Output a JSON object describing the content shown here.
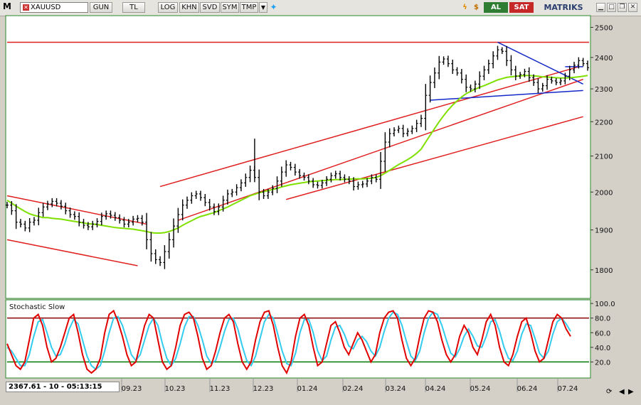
{
  "toolbar": {
    "logo": "M",
    "symbol": "XAUUSD",
    "buttons": [
      "GUN",
      "TL",
      "LOG",
      "KHN",
      "SVD",
      "SYM",
      "TMP"
    ],
    "buy_label": "AL",
    "sell_label": "SAT",
    "brand": "MATRIKS"
  },
  "status": {
    "readout": "2367.61 - 10 - 05:13:15"
  },
  "indicator": {
    "title": "Stochastic Slow"
  },
  "colors": {
    "price": "#000000",
    "ma": "#7fe000",
    "channel": "#e02020",
    "triangle": "#1428c8",
    "stoch_k": "#e00000",
    "stoch_d": "#33ccee",
    "overbought": "#8b0000",
    "oversold": "#007a00"
  },
  "chart_data": [
    {
      "type": "line",
      "title": "",
      "x_ticks": [
        "09.23",
        "10.23",
        "11.23",
        "12.23",
        "01.24",
        "02.24",
        "03.24",
        "04.24",
        "05.24",
        "06.24",
        "07.24"
      ],
      "y_ticks": [
        1800,
        1900,
        2000,
        2100,
        2200,
        2300,
        2400,
        2500
      ],
      "ylim": [
        1735,
        2535
      ],
      "scale": "log",
      "grid": false,
      "series": [
        {
          "values": [
            1965,
            1950,
            1920,
            1915,
            1905,
            1920,
            1925,
            1945,
            1960,
            1968,
            1975,
            1970,
            1962,
            1950,
            1940,
            1935,
            1920,
            1912,
            1908,
            1915,
            1922,
            1935,
            1942,
            1938,
            1932,
            1925,
            1915,
            1920,
            1928,
            1930,
            1920,
            1875,
            1840,
            1825,
            1818,
            1845,
            1875,
            1910,
            1940,
            1965,
            1978,
            1990,
            1995,
            1985,
            1972,
            1960,
            1948,
            1960,
            1978,
            1995,
            2000,
            2012,
            2025,
            2040,
            2060,
            2040,
            2000,
            1990,
            2000,
            2010,
            2030,
            2055,
            2075,
            2068,
            2055,
            2045,
            2040,
            2030,
            2020,
            2018,
            2025,
            2035,
            2045,
            2050,
            2040,
            2035,
            2030,
            2015,
            2020,
            2022,
            2030,
            2040,
            2035,
            2085,
            2140,
            2165,
            2175,
            2180,
            2165,
            2172,
            2180,
            2195,
            2210,
            2280,
            2320,
            2350,
            2385,
            2395,
            2380,
            2360,
            2350,
            2330,
            2305,
            2300,
            2315,
            2340,
            2360,
            2380,
            2405,
            2425,
            2420,
            2390,
            2360,
            2340,
            2345,
            2355,
            2335,
            2320,
            2300,
            2310,
            2330,
            2325,
            2320,
            2325,
            2340,
            2360,
            2375,
            2390,
            2380,
            2367
          ]
        },
        {
          "values": [
            1978,
            1970,
            1962,
            1955,
            1948,
            1942,
            1938,
            1935,
            1932,
            1932,
            1930,
            1929,
            1928,
            1926,
            1924,
            1922,
            1920,
            1918,
            1916,
            1915,
            1914,
            1912,
            1910,
            1908,
            1906,
            1905,
            1904,
            1903,
            1902,
            1900,
            1898,
            1896,
            1893,
            1892,
            1892,
            1893,
            1896,
            1900,
            1905,
            1912,
            1918,
            1924,
            1930,
            1935,
            1938,
            1942,
            1945,
            1950,
            1955,
            1960,
            1966,
            1972,
            1978,
            1984,
            1990,
            1994,
            1998,
            2001,
            2004,
            2007,
            2010,
            2014,
            2017,
            2020,
            2022,
            2024,
            2026,
            2028,
            2029,
            2030,
            2031,
            2032,
            2033,
            2034,
            2034,
            2035,
            2035,
            2036,
            2036,
            2036,
            2037,
            2038,
            2040,
            2045,
            2052,
            2060,
            2068,
            2076,
            2083,
            2090,
            2098,
            2108,
            2120,
            2140,
            2160,
            2180,
            2200,
            2218,
            2235,
            2250,
            2263,
            2275,
            2285,
            2292,
            2299,
            2305,
            2310,
            2316,
            2322,
            2328,
            2332,
            2336,
            2338,
            2340,
            2341,
            2342,
            2342,
            2341,
            2340,
            2338,
            2337,
            2336,
            2335,
            2334,
            2334,
            2335,
            2336,
            2338,
            2340,
            2342
          ]
        }
      ]
    },
    {
      "type": "line",
      "title": "Stochastic Slow",
      "y_ticks": [
        20,
        40,
        60,
        80,
        100
      ],
      "ylim": [
        0,
        103
      ],
      "levels": [
        20,
        80
      ],
      "series": [
        {
          "values": [
            45,
            30,
            15,
            10,
            20,
            50,
            80,
            85,
            70,
            40,
            20,
            25,
            40,
            60,
            80,
            85,
            60,
            30,
            10,
            5,
            10,
            25,
            60,
            85,
            90,
            75,
            55,
            30,
            15,
            20,
            45,
            70,
            85,
            80,
            50,
            20,
            10,
            15,
            40,
            70,
            85,
            88,
            80,
            55,
            25,
            10,
            15,
            35,
            60,
            80,
            85,
            75,
            45,
            20,
            10,
            20,
            50,
            75,
            88,
            90,
            70,
            40,
            15,
            5,
            20,
            55,
            80,
            85,
            70,
            40,
            15,
            20,
            45,
            70,
            75,
            60,
            40,
            30,
            45,
            60,
            50,
            35,
            20,
            30,
            60,
            80,
            88,
            90,
            80,
            50,
            25,
            15,
            25,
            55,
            80,
            90,
            88,
            75,
            50,
            30,
            20,
            30,
            55,
            70,
            60,
            40,
            30,
            50,
            75,
            85,
            70,
            40,
            20,
            15,
            30,
            55,
            75,
            80,
            60,
            35,
            20,
            25,
            50,
            75,
            85,
            80,
            65,
            55
          ]
        },
        {
          "values": [
            40,
            35,
            25,
            15,
            15,
            30,
            55,
            75,
            78,
            60,
            40,
            28,
            30,
            45,
            65,
            78,
            72,
            50,
            28,
            15,
            10,
            15,
            35,
            60,
            80,
            82,
            70,
            50,
            30,
            22,
            30,
            50,
            70,
            80,
            70,
            45,
            25,
            15,
            25,
            45,
            68,
            82,
            82,
            70,
            50,
            28,
            18,
            22,
            40,
            62,
            78,
            80,
            65,
            42,
            22,
            15,
            28,
            52,
            75,
            85,
            80,
            58,
            35,
            18,
            15,
            32,
            60,
            78,
            78,
            60,
            35,
            22,
            28,
            50,
            68,
            70,
            58,
            42,
            38,
            50,
            55,
            48,
            35,
            28,
            40,
            62,
            80,
            88,
            85,
            70,
            48,
            28,
            22,
            35,
            60,
            80,
            88,
            85,
            70,
            50,
            32,
            27,
            38,
            55,
            65,
            55,
            42,
            40,
            55,
            75,
            78,
            62,
            40,
            25,
            22,
            35,
            58,
            72,
            70,
            52,
            32,
            25,
            35,
            58,
            75,
            80,
            72,
            62
          ]
        }
      ]
    }
  ]
}
